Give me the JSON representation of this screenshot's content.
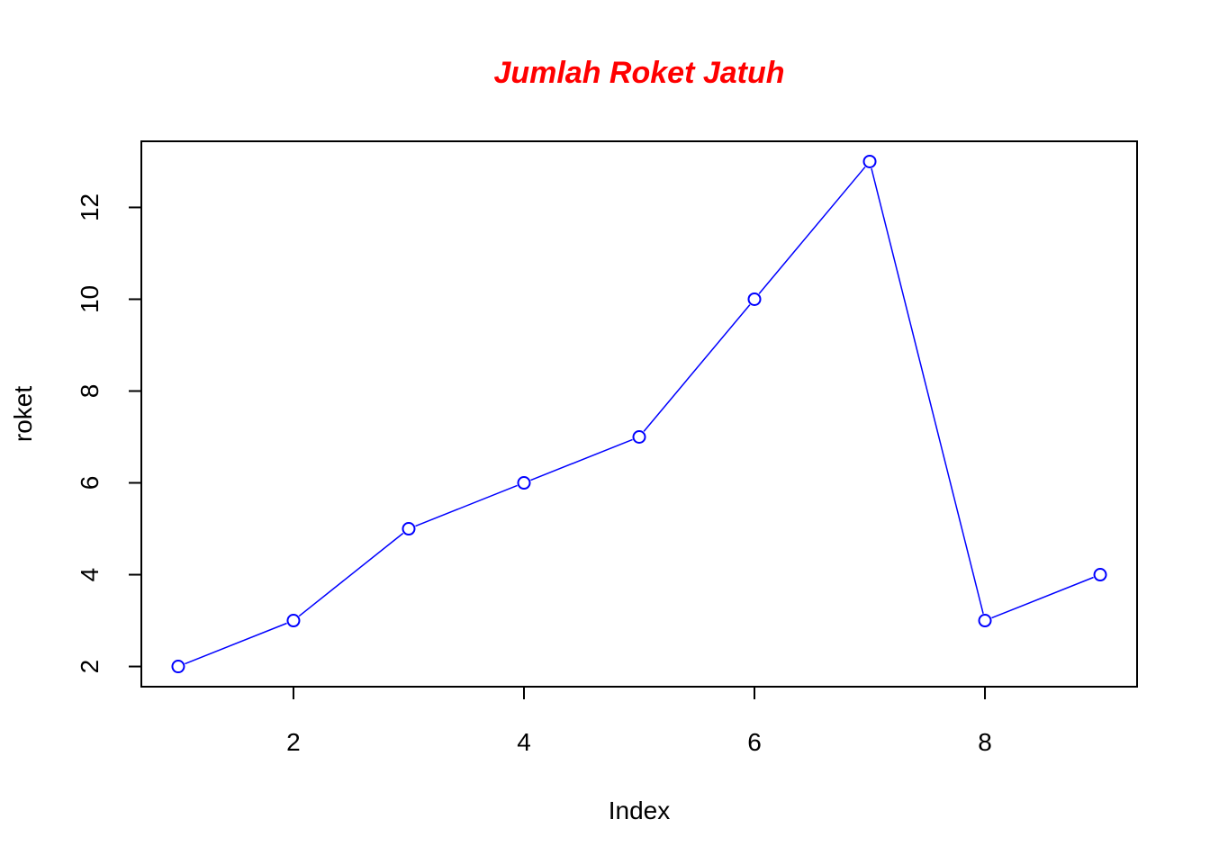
{
  "chart_data": {
    "type": "line",
    "title": "Jumlah Roket Jatuh",
    "title_color": "#ff0000",
    "xlabel": "Index",
    "ylabel": "roket",
    "x": [
      1,
      2,
      3,
      4,
      5,
      6,
      7,
      8,
      9
    ],
    "series": [
      {
        "values": [
          2,
          3,
          5,
          6,
          7,
          10,
          13,
          3,
          4
        ],
        "color": "#0000ff",
        "marker": "open-circle",
        "line": "solid"
      }
    ],
    "xticks": [
      2,
      4,
      6,
      8
    ],
    "yticks": [
      2,
      4,
      6,
      8,
      10,
      12
    ],
    "xlim": [
      0.68,
      9.32
    ],
    "ylim": [
      1.56,
      13.44
    ],
    "grid": false,
    "legend": "none"
  }
}
